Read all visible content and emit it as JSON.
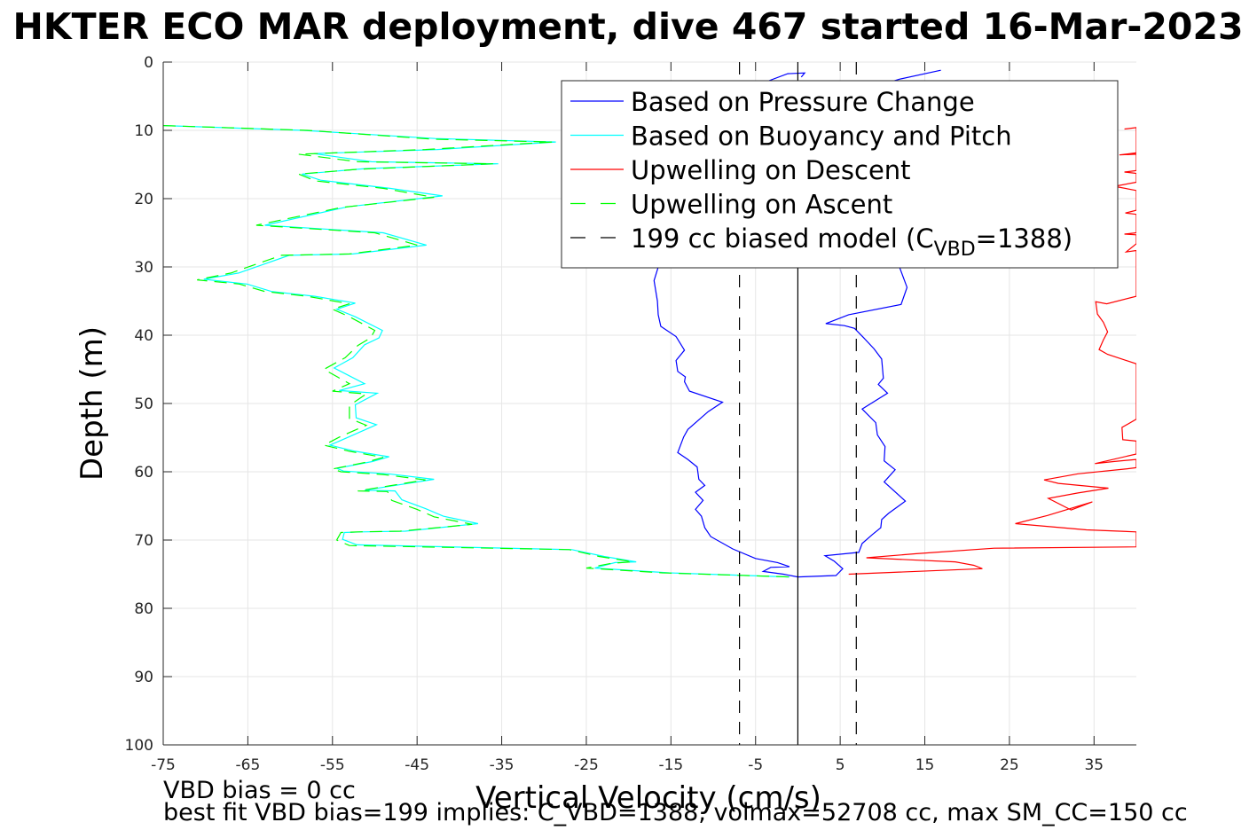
{
  "title": "HKTER ECO MAR deployment, dive 467 started 16-Mar-2023",
  "footer": {
    "line1": "VBD bias = 0 cc",
    "line2": "best fit VBD bias=199 implies: C_VBD=1388, volmax=52708 cc, max SM_CC=150 cc"
  },
  "colors": {
    "pressure": "#0000ff",
    "buoyancy": "#00ffff",
    "descent": "#ff0000",
    "ascent": "#00ff00",
    "model": "#000000",
    "grid": "#e6e6e6"
  },
  "chart_data": {
    "type": "line",
    "xlabel": "Vertical Velocity (cm/s)",
    "ylabel": "Depth (m)",
    "xlim": [
      -75,
      40
    ],
    "ylim": [
      0,
      100
    ],
    "y_reversed": true,
    "xticks": [
      -75,
      -65,
      -55,
      -45,
      -35,
      -25,
      -15,
      -5,
      5,
      15,
      25,
      35
    ],
    "yticks": [
      0,
      10,
      20,
      30,
      40,
      50,
      60,
      70,
      80,
      90,
      100
    ],
    "grid": true,
    "legend_position": "top-right",
    "legend": [
      {
        "label": "Based on Pressure Change",
        "style": "solid",
        "color": "#0000ff"
      },
      {
        "label": "Based on Buoyancy and Pitch",
        "style": "solid",
        "color": "#00ffff"
      },
      {
        "label": "Upwelling on Descent",
        "style": "solid",
        "color": "#ff0000"
      },
      {
        "label": "Upwelling on Ascent",
        "style": "dashed",
        "color": "#00ff00"
      },
      {
        "label": "199 cc biased model (C",
        "sub": "VBD",
        "suffix": "=1388)",
        "style": "dashed",
        "color": "#000000"
      }
    ],
    "series": [
      {
        "name": "Based on Pressure Change",
        "color": "#0000ff",
        "style": "solid",
        "points": [
          [
            16.9,
            1.2
          ],
          [
            12,
            2.5
          ],
          [
            8,
            4
          ],
          [
            5,
            6
          ],
          [
            4,
            10
          ],
          [
            5,
            14
          ],
          [
            7,
            18
          ],
          [
            8,
            22
          ],
          [
            10,
            26
          ],
          [
            12,
            30
          ],
          [
            12.9,
            33
          ],
          [
            12.2,
            35.5
          ],
          [
            6,
            37
          ],
          [
            3.3,
            38.3
          ],
          [
            5.5,
            38.6
          ],
          [
            6.7,
            39
          ],
          [
            7.8,
            40.4
          ],
          [
            9,
            42
          ],
          [
            9.9,
            43.5
          ],
          [
            10.1,
            46.3
          ],
          [
            9.5,
            47.2
          ],
          [
            10.6,
            48.5
          ],
          [
            7.6,
            50.8
          ],
          [
            9.2,
            52.8
          ],
          [
            9.4,
            54.6
          ],
          [
            10.3,
            56.3
          ],
          [
            10.2,
            58.4
          ],
          [
            11.5,
            59.7
          ],
          [
            10.2,
            61.5
          ],
          [
            12.7,
            64.3
          ],
          [
            10.7,
            66.1
          ],
          [
            9.9,
            67
          ],
          [
            9.8,
            68.2
          ],
          [
            8.8,
            69.2
          ],
          [
            7.6,
            70.5
          ],
          [
            7.2,
            71.8
          ],
          [
            3.2,
            72.3
          ],
          [
            4.3,
            73.1
          ],
          [
            5.3,
            74.2
          ],
          [
            4.5,
            75.2
          ],
          [
            0,
            75.4
          ],
          [
            -1.7,
            75
          ],
          [
            -4.1,
            74.6
          ],
          [
            -3.2,
            74
          ],
          [
            -1,
            73.9
          ],
          [
            -2.4,
            73.3
          ],
          [
            -5,
            72.7
          ],
          [
            -7.7,
            71.3
          ],
          [
            -10.3,
            69.5
          ],
          [
            -11,
            68.2
          ],
          [
            -11.4,
            66.5
          ],
          [
            -12.1,
            65.5
          ],
          [
            -11.2,
            64.2
          ],
          [
            -12.1,
            63
          ],
          [
            -11,
            62
          ],
          [
            -11.7,
            61.1
          ],
          [
            -11.9,
            59.3
          ],
          [
            -13,
            58.2
          ],
          [
            -14.2,
            57.2
          ],
          [
            -13.5,
            54.9
          ],
          [
            -13,
            53.8
          ],
          [
            -10.6,
            51.2
          ],
          [
            -8.9,
            49.8
          ],
          [
            -12.8,
            48.2
          ],
          [
            -13.4,
            46.8
          ],
          [
            -13.3,
            46.1
          ],
          [
            -14.2,
            45.3
          ],
          [
            -14.4,
            43.7
          ],
          [
            -13.4,
            42.2
          ],
          [
            -14.4,
            40.2
          ],
          [
            -16.2,
            38.7
          ],
          [
            -16.5,
            37
          ],
          [
            -16.6,
            35
          ],
          [
            -17,
            32
          ],
          [
            -16,
            28
          ],
          [
            -14,
            24
          ],
          [
            -12,
            20
          ],
          [
            -10,
            16
          ],
          [
            -8,
            12
          ],
          [
            -7,
            8
          ],
          [
            -6,
            5
          ],
          [
            -4,
            3
          ],
          [
            -1.2,
            1.7
          ],
          [
            0.8,
            1.6
          ],
          [
            0.4,
            2.2
          ]
        ]
      },
      {
        "name": "Based on Buoyancy and Pitch",
        "color": "#00ffff",
        "style": "solid",
        "points": [
          [
            -74.9,
            9.3
          ],
          [
            -58.5,
            10
          ],
          [
            -42.9,
            11.2
          ],
          [
            -28.6,
            11.7
          ],
          [
            -42.6,
            12.8
          ],
          [
            -57.2,
            13.4
          ],
          [
            -50.4,
            14.6
          ],
          [
            -35.4,
            14.9
          ],
          [
            -51.1,
            15.6
          ],
          [
            -58.6,
            16.4
          ],
          [
            -56.4,
            17.3
          ],
          [
            -48.2,
            18.5
          ],
          [
            -42,
            19.6
          ],
          [
            -53.2,
            21.2
          ],
          [
            -63,
            23.9
          ],
          [
            -49,
            25
          ],
          [
            -43.9,
            26.8
          ],
          [
            -52.6,
            28.1
          ],
          [
            -60.1,
            28.3
          ],
          [
            -63.1,
            29.6
          ],
          [
            -66.1,
            30.9
          ],
          [
            -70.2,
            31.8
          ],
          [
            -65.1,
            32.5
          ],
          [
            -62.2,
            33.6
          ],
          [
            -57.1,
            34.3
          ],
          [
            -52.3,
            35.3
          ],
          [
            -54.5,
            36.2
          ],
          [
            -52.3,
            37.3
          ],
          [
            -49.1,
            39.3
          ],
          [
            -49.5,
            40.4
          ],
          [
            -51.2,
            41.4
          ],
          [
            -52.6,
            43.3
          ],
          [
            -54.8,
            44.8
          ],
          [
            -51.2,
            47.1
          ],
          [
            -54.2,
            48.1
          ],
          [
            -49.7,
            48.5
          ],
          [
            -52.3,
            50.2
          ],
          [
            -52.2,
            52.1
          ],
          [
            -49.8,
            53.1
          ],
          [
            -52.7,
            54.7
          ],
          [
            -55.3,
            56.1
          ],
          [
            -52.3,
            57
          ],
          [
            -48.3,
            57.8
          ],
          [
            -50.3,
            58.5
          ],
          [
            -54.5,
            59.5
          ],
          [
            -53.7,
            59.9
          ],
          [
            -48.4,
            60.3
          ],
          [
            -43,
            61.1
          ],
          [
            -51.2,
            62.7
          ],
          [
            -47.6,
            62.8
          ],
          [
            -46.8,
            64.1
          ],
          [
            -44,
            65.4
          ],
          [
            -41.9,
            66.5
          ],
          [
            -37.8,
            67.6
          ],
          [
            -46.4,
            68.7
          ],
          [
            -51.6,
            68.8
          ],
          [
            -53.6,
            68.9
          ],
          [
            -53.8,
            69.9
          ],
          [
            -52.1,
            70.7
          ],
          [
            -26.7,
            71.4
          ],
          [
            -22.9,
            72.4
          ],
          [
            -19.1,
            73.2
          ],
          [
            -21.6,
            73.3
          ],
          [
            -24,
            74.1
          ],
          [
            -15.2,
            74.8
          ],
          [
            -1,
            75.4
          ]
        ]
      },
      {
        "name": "Upwelling on Descent",
        "color": "#ff0000",
        "style": "solid",
        "points": [
          [
            6,
            75
          ],
          [
            21.8,
            74.2
          ],
          [
            20.8,
            73.7
          ],
          [
            18.6,
            73.2
          ],
          [
            13.3,
            72.9
          ],
          [
            8.1,
            72.6
          ],
          [
            14,
            72
          ],
          [
            23.2,
            71.2
          ],
          [
            40,
            71
          ],
          [
            40,
            68.8
          ],
          [
            34.1,
            68.5
          ],
          [
            25.7,
            67.6
          ],
          [
            29.5,
            66.4
          ],
          [
            34.8,
            64.4
          ],
          [
            32.3,
            65.6
          ],
          [
            29.6,
            63.9
          ],
          [
            33.1,
            63.1
          ],
          [
            36.7,
            62.4
          ],
          [
            30.8,
            61.7
          ],
          [
            29.1,
            61.2
          ],
          [
            33.1,
            60.3
          ],
          [
            38.7,
            59.6
          ],
          [
            40,
            59.4
          ],
          [
            40,
            58.2
          ],
          [
            37.3,
            58.5
          ],
          [
            35.1,
            58.8
          ],
          [
            40,
            57.4
          ],
          [
            40,
            55.5
          ],
          [
            38.4,
            55.3
          ],
          [
            38.3,
            53.5
          ],
          [
            40,
            52.3
          ],
          [
            40,
            44.2
          ],
          [
            36.6,
            42.8
          ],
          [
            35.6,
            42.1
          ],
          [
            36.1,
            40.7
          ],
          [
            36.6,
            39.5
          ],
          [
            36.1,
            38.1
          ],
          [
            35.4,
            36.9
          ],
          [
            35.2,
            35.1
          ],
          [
            36.5,
            35.4
          ],
          [
            40,
            34.3
          ],
          [
            40,
            27.6
          ],
          [
            38.8,
            27.8
          ],
          [
            40,
            26.6
          ],
          [
            40,
            25.3
          ],
          [
            38.6,
            25.2
          ],
          [
            40,
            25
          ],
          [
            40,
            22.3
          ],
          [
            38.7,
            22.1
          ],
          [
            40,
            21.7
          ],
          [
            40,
            18.8
          ],
          [
            37.4,
            18.2
          ],
          [
            40,
            17.6
          ],
          [
            40,
            16.3
          ],
          [
            38.6,
            16.1
          ],
          [
            40,
            15.9
          ],
          [
            40,
            13.5
          ],
          [
            38,
            13.6
          ],
          [
            40,
            13.3
          ],
          [
            40,
            9.6
          ],
          [
            38.6,
            9.8
          ]
        ]
      },
      {
        "name": "Upwelling on Ascent",
        "color": "#00ff00",
        "style": "dashed",
        "points": [
          [
            -75,
            9.3
          ],
          [
            -58,
            10
          ],
          [
            -43,
            11.3
          ],
          [
            -29,
            11.7
          ],
          [
            -44,
            12.8
          ],
          [
            -59,
            13.5
          ],
          [
            -52,
            14.6
          ],
          [
            -36,
            14.9
          ],
          [
            -52,
            15.7
          ],
          [
            -59,
            16.4
          ],
          [
            -57,
            17.4
          ],
          [
            -49,
            18.5
          ],
          [
            -43,
            19.8
          ],
          [
            -54,
            21.3
          ],
          [
            -64,
            23.9
          ],
          [
            -50,
            25
          ],
          [
            -45,
            26.8
          ],
          [
            -53,
            28.1
          ],
          [
            -61,
            28.3
          ],
          [
            -64,
            29.6
          ],
          [
            -67,
            30.9
          ],
          [
            -71,
            31.9
          ],
          [
            -66,
            32.5
          ],
          [
            -63,
            33.6
          ],
          [
            -58,
            34.3
          ],
          [
            -53,
            35.4
          ],
          [
            -55,
            36.2
          ],
          [
            -53,
            37.3
          ],
          [
            -50,
            39.3
          ],
          [
            -50.5,
            40.4
          ],
          [
            -52,
            41.5
          ],
          [
            -53.5,
            43.3
          ],
          [
            -56,
            45
          ],
          [
            -53,
            47.1
          ],
          [
            -55,
            48.2
          ],
          [
            -51,
            48.6
          ],
          [
            -53,
            50.3
          ],
          [
            -53,
            52.2
          ],
          [
            -51,
            53.2
          ],
          [
            -54,
            54.8
          ],
          [
            -56,
            56.1
          ],
          [
            -53,
            57
          ],
          [
            -49,
            57.9
          ],
          [
            -51,
            58.6
          ],
          [
            -55,
            59.6
          ],
          [
            -54,
            60
          ],
          [
            -49,
            60.4
          ],
          [
            -44,
            61.2
          ],
          [
            -52,
            62.8
          ],
          [
            -48.5,
            62.9
          ],
          [
            -48,
            64.2
          ],
          [
            -45,
            65.5
          ],
          [
            -43,
            66.6
          ],
          [
            -38.5,
            67.7
          ],
          [
            -47,
            68.7
          ],
          [
            -52,
            68.8
          ],
          [
            -54,
            68.9
          ],
          [
            -54.5,
            70
          ],
          [
            -53,
            70.8
          ],
          [
            -27,
            71.4
          ],
          [
            -23.5,
            72.4
          ],
          [
            -19.5,
            73.2
          ],
          [
            -22,
            73.4
          ],
          [
            -25,
            74.1
          ],
          [
            -16,
            74.8
          ],
          [
            -1,
            75.4
          ]
        ]
      },
      {
        "name": "199 cc biased model (C_VBD=1388)",
        "color": "#000000",
        "style": "dashed",
        "points": [
          [
            -6.9,
            0
          ],
          [
            -6.9,
            100
          ]
        ]
      },
      {
        "color": "#000000",
        "style": "dashed",
        "points": [
          [
            6.9,
            0
          ],
          [
            6.9,
            100
          ]
        ]
      },
      {
        "color": "#000000",
        "style": "solid",
        "points": [
          [
            0,
            0
          ],
          [
            0,
            100
          ]
        ]
      }
    ]
  }
}
